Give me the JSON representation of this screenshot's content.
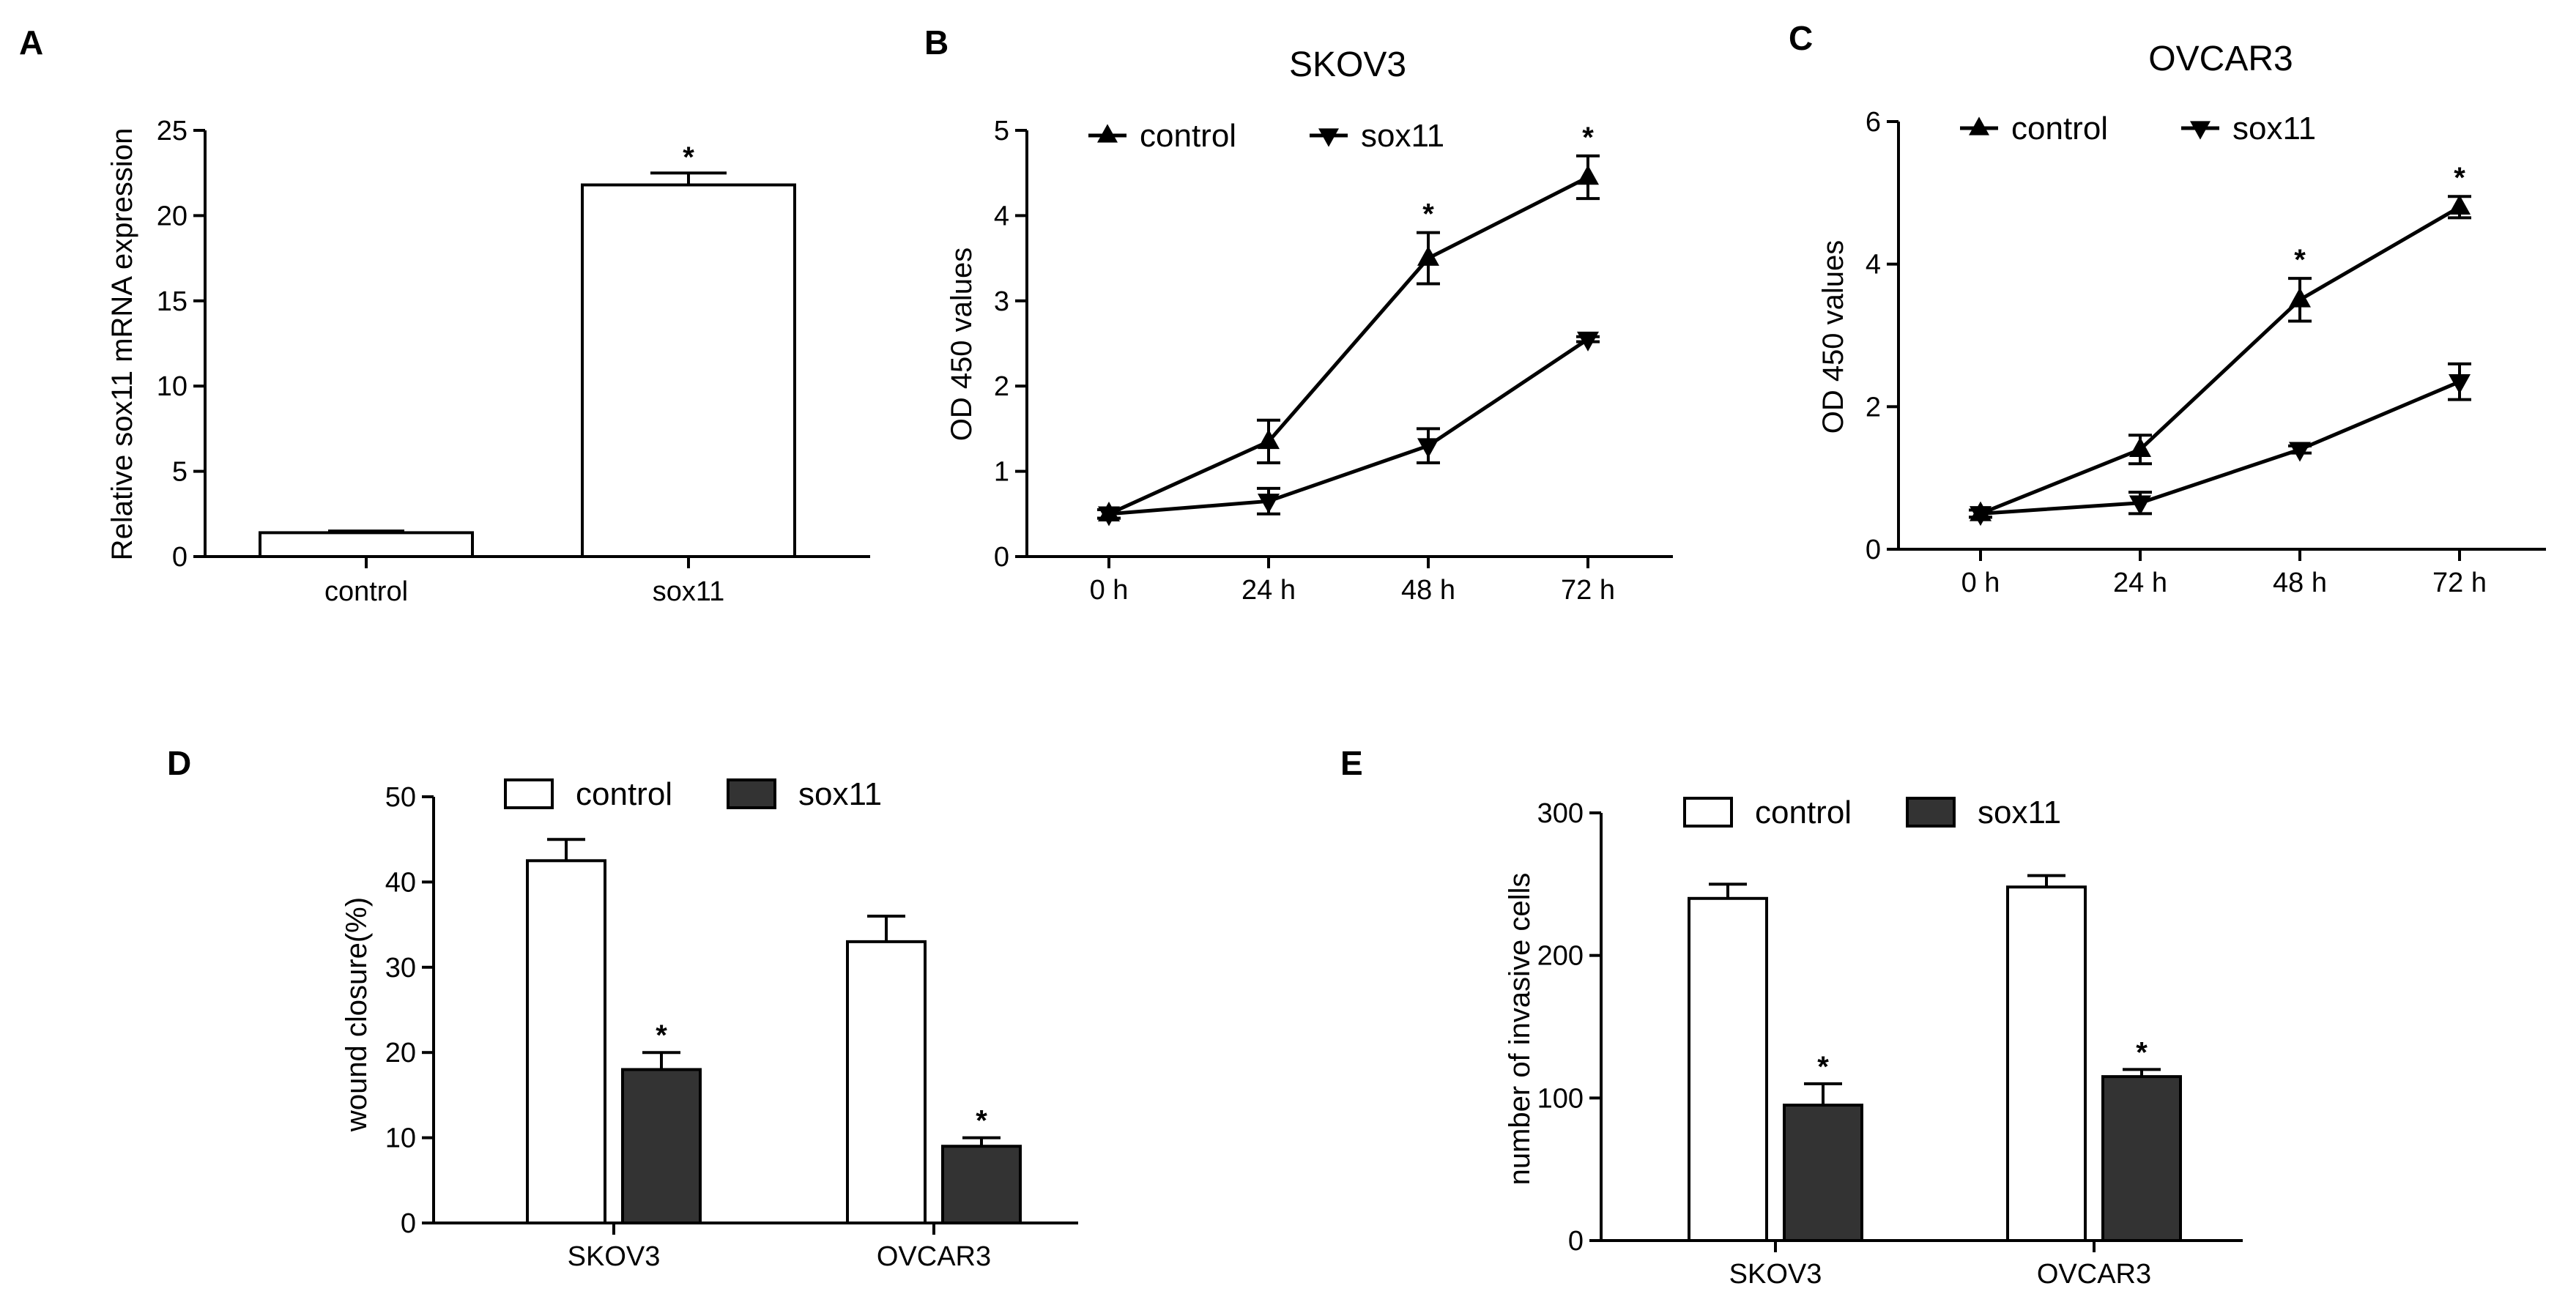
{
  "panel_labels": [
    "A",
    "B",
    "C",
    "D",
    "E"
  ],
  "significance_marker": "*",
  "colors": {
    "control": "#ffffff",
    "sox11": "#333333",
    "line": "#000000"
  },
  "chart_data": [
    {
      "id": "A",
      "type": "bar",
      "title": "",
      "xlabel": "",
      "ylabel": "Relative sox11 mRNA expression",
      "ylim": [
        0,
        25
      ],
      "yticks": [
        0,
        5,
        10,
        15,
        20,
        25
      ],
      "categories": [
        "control",
        "sox11"
      ],
      "values": [
        1.4,
        21.8
      ],
      "errors": [
        0.1,
        0.7
      ],
      "fills": [
        "#ffffff",
        "#ffffff"
      ],
      "significant": [
        false,
        true
      ]
    },
    {
      "id": "B",
      "type": "line",
      "title": "SKOV3",
      "xlabel": "",
      "ylabel": "OD 450 values",
      "ylim": [
        0,
        5
      ],
      "yticks": [
        0,
        1,
        2,
        3,
        4,
        5
      ],
      "x": [
        "0 h",
        "24 h",
        "48 h",
        "72 h"
      ],
      "legend": "top",
      "series": [
        {
          "name": "control",
          "marker": "triangle-up",
          "values": [
            0.5,
            1.35,
            3.5,
            4.45
          ],
          "errors": [
            0.05,
            0.25,
            0.3,
            0.25
          ],
          "significant": [
            false,
            false,
            true,
            true
          ]
        },
        {
          "name": "sox11",
          "marker": "triangle-down",
          "values": [
            0.5,
            0.65,
            1.3,
            2.55
          ],
          "errors": [
            0.05,
            0.15,
            0.2,
            0.03
          ],
          "significant": [
            false,
            false,
            false,
            false
          ]
        }
      ]
    },
    {
      "id": "C",
      "type": "line",
      "title": "OVCAR3",
      "xlabel": "",
      "ylabel": "OD 450 values",
      "ylim": [
        0,
        6
      ],
      "yticks": [
        0,
        2,
        4,
        6
      ],
      "x": [
        "0 h",
        "24 h",
        "48 h",
        "72 h"
      ],
      "legend": "top",
      "series": [
        {
          "name": "control",
          "marker": "triangle-up",
          "values": [
            0.5,
            1.4,
            3.5,
            4.8
          ],
          "errors": [
            0.05,
            0.2,
            0.3,
            0.15
          ],
          "significant": [
            false,
            false,
            true,
            true
          ]
        },
        {
          "name": "sox11",
          "marker": "triangle-down",
          "values": [
            0.5,
            0.65,
            1.4,
            2.35
          ],
          "errors": [
            0.05,
            0.15,
            0.05,
            0.25
          ],
          "significant": [
            false,
            false,
            false,
            false
          ]
        }
      ]
    },
    {
      "id": "D",
      "type": "bar",
      "title": "",
      "xlabel": "",
      "ylabel": "wound closure(%)",
      "ylim": [
        0,
        50
      ],
      "yticks": [
        0,
        10,
        20,
        30,
        40,
        50
      ],
      "categories": [
        "SKOV3",
        "OVCAR3"
      ],
      "legend": "top",
      "series": [
        {
          "name": "control",
          "values": [
            42.5,
            33
          ],
          "errors": [
            2.5,
            3
          ],
          "significant": [
            false,
            false
          ]
        },
        {
          "name": "sox11",
          "values": [
            18,
            9
          ],
          "errors": [
            2,
            1
          ],
          "significant": [
            true,
            true
          ]
        }
      ]
    },
    {
      "id": "E",
      "type": "bar",
      "title": "",
      "xlabel": "",
      "ylabel": "number of invasive cells",
      "ylim": [
        0,
        300
      ],
      "yticks": [
        0,
        100,
        200,
        300
      ],
      "categories": [
        "SKOV3",
        "OVCAR3"
      ],
      "legend": "top",
      "series": [
        {
          "name": "control",
          "values": [
            240,
            248
          ],
          "errors": [
            10,
            8
          ],
          "significant": [
            false,
            false
          ]
        },
        {
          "name": "sox11",
          "values": [
            95,
            115
          ],
          "errors": [
            15,
            5
          ],
          "significant": [
            true,
            true
          ]
        }
      ]
    }
  ]
}
